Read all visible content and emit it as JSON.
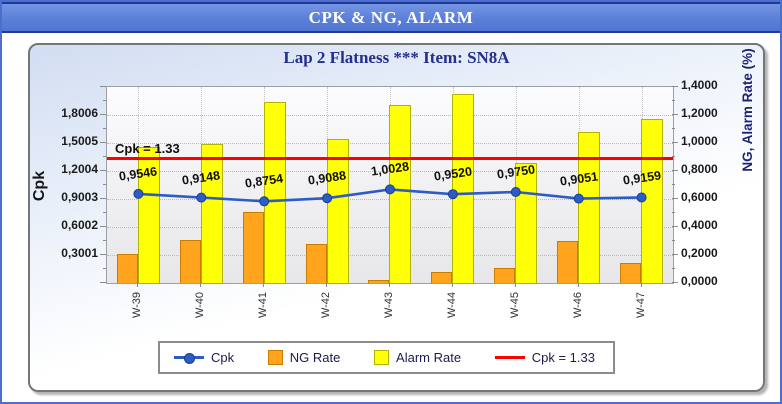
{
  "window": {
    "title": "CPK & NG, ALARM"
  },
  "chart_data": {
    "type": "bar+line combo",
    "title": "Lap 2 Flatness *** Item: SN8A",
    "annotation": "Cpk = 1.33",
    "categories": [
      "W-39",
      "W-40",
      "W-41",
      "W-42",
      "W-43",
      "W-44",
      "W-45",
      "W-46",
      "W-47"
    ],
    "series": [
      {
        "name": "Cpk",
        "type": "line",
        "axis": "left",
        "color": "#2e5cc5",
        "marker_border": "#1a3e8f",
        "values": [
          0.9546,
          0.9148,
          0.8754,
          0.9088,
          1.0028,
          0.952,
          0.975,
          0.9051,
          0.9159
        ],
        "point_labels": [
          "0,9546",
          "0,9148",
          "0,8754",
          "0,9088",
          "1,0028",
          "0,9520",
          "0,9750",
          "0,9051",
          "0,9159"
        ]
      },
      {
        "name": "NG Rate",
        "type": "bar",
        "axis": "right",
        "color": "#ffa41c",
        "border": "#c87d00",
        "values": [
          0.21,
          0.31,
          0.51,
          0.28,
          0.02,
          0.08,
          0.11,
          0.3,
          0.14
        ]
      },
      {
        "name": "Alarm Rate",
        "type": "bar",
        "axis": "right",
        "color": "#ffff05",
        "border": "#b2b200",
        "values": [
          0.97,
          0.99,
          1.29,
          1.03,
          1.27,
          1.35,
          0.86,
          1.08,
          1.17
        ]
      },
      {
        "name": "Cpk = 1.33",
        "type": "reference-line",
        "axis": "left",
        "color": "#ff0000",
        "value": 1.33
      }
    ],
    "left_axis": {
      "label": "Cpk",
      "range": [
        0,
        2.1007
      ],
      "tick_step": 0.3001,
      "tick_labels_top_to_bottom": [
        "1,8006",
        "1,5005",
        "1,2004",
        "0,9003",
        "0,6002",
        "0,3001"
      ]
    },
    "right_axis": {
      "label": "NG, Alarm Rate (%)",
      "range": [
        0,
        1.4
      ],
      "tick_step": 0.2,
      "tick_labels_top_to_bottom": [
        "1,4000",
        "1,2000",
        "1,0000",
        "0,8000",
        "0,6000",
        "0,4000",
        "0,2000",
        "0,0000"
      ]
    },
    "grid": true,
    "legend_position": "bottom"
  },
  "legend": {
    "items": [
      {
        "label": "Cpk",
        "swatch": "line-marker",
        "color": "#2e5cc5"
      },
      {
        "label": "NG Rate",
        "swatch": "square",
        "color": "#ffa41c",
        "border": "#c87d00"
      },
      {
        "label": "Alarm Rate",
        "swatch": "square",
        "color": "#ffff05",
        "border": "#b2b200"
      },
      {
        "label": "Cpk = 1.33",
        "swatch": "ref-line",
        "color": "#ff0000"
      }
    ]
  },
  "colors": {
    "header_bg": "#5b80d8",
    "header_border": "#22389c",
    "outer_border": "#4a70cc",
    "panel_border": "#767676",
    "title_text": "#252e8e",
    "cpk_line": "#2e5cc5",
    "ng_bar": "#ffa41c",
    "alarm_bar": "#ffff05",
    "reference_line": "#ff0000"
  }
}
